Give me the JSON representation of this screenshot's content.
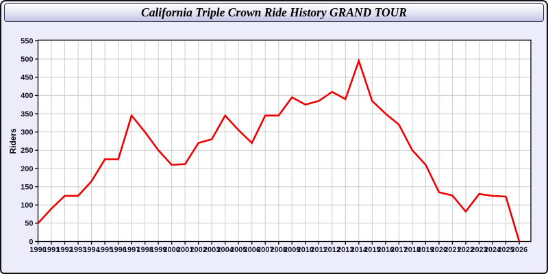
{
  "window": {
    "title": "California Triple Crown Ride History GRAND TOUR"
  },
  "colors": {
    "window_background": "#ECECFA",
    "titlebar_top": "#FFFFFF",
    "titlebar_bottom": "#C3C3E4",
    "plot_background": "#FFFFFF",
    "grid": "#CCCCCC",
    "axis_border": "#000000",
    "tick_label": "#101024",
    "series_line": "#EE0000"
  },
  "chart_data": {
    "type": "line",
    "title": "California Triple Crown Ride History GRAND TOUR",
    "xlabel": "",
    "ylabel": "Riders",
    "ylim": [
      0,
      550
    ],
    "ytick_interval": 50,
    "grid": true,
    "legend_position": "none",
    "line_color": "#EE0000",
    "categories": [
      "1990",
      "1991",
      "1992",
      "1993",
      "1994",
      "1995",
      "1996",
      "1997",
      "1998",
      "1999",
      "2000",
      "2001",
      "2002",
      "2003",
      "2004",
      "2005",
      "2006",
      "2007",
      "2008",
      "2009",
      "2010",
      "2011",
      "2012",
      "2013",
      "2014",
      "2015",
      "2016",
      "2017",
      "2018",
      "2019",
      "2020",
      "2021",
      "2022",
      "2023",
      "2024",
      "2025",
      "2026"
    ],
    "values": [
      50,
      90,
      125,
      125,
      165,
      225,
      225,
      345,
      300,
      250,
      210,
      212,
      270,
      280,
      345,
      305,
      270,
      345,
      345,
      395,
      375,
      385,
      410,
      390,
      495,
      385,
      350,
      320,
      250,
      210,
      135,
      126,
      82,
      130,
      125,
      123,
      0
    ]
  }
}
